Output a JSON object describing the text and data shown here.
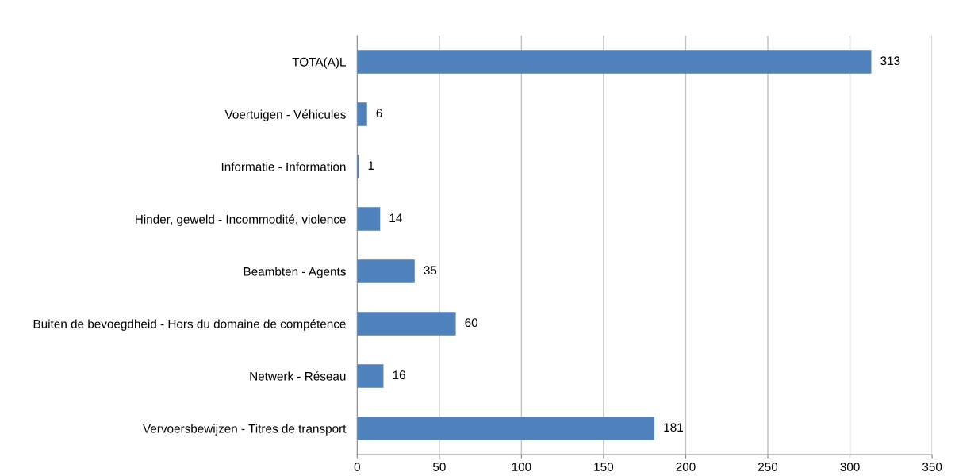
{
  "chart_data": {
    "type": "bar",
    "orientation": "horizontal",
    "categories": [
      "TOTA(A)L",
      "Voertuigen - Véhicules",
      "Informatie - Information",
      "Hinder, geweld - Incommodité, violence",
      "Beambten - Agents",
      "Buiten de bevoegdheid - Hors du domaine de compétence",
      "Netwerk - Réseau",
      "Vervoersbewijzen - Titres de transport"
    ],
    "values": [
      313,
      6,
      1,
      14,
      35,
      60,
      16,
      181
    ],
    "color": "#4f81bd",
    "xlim": [
      0,
      350
    ],
    "xticks": [
      0,
      50,
      100,
      150,
      200,
      250,
      300,
      350
    ],
    "grid": "x",
    "data_labels": true,
    "legend": false
  }
}
